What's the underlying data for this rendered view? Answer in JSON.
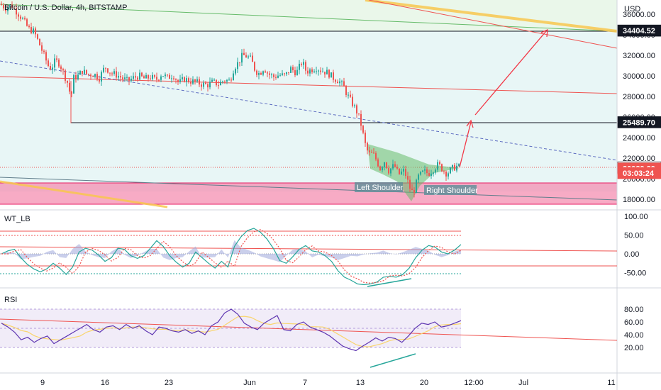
{
  "header": {
    "symbol": "Bitcoin / U.S. Dollar, 4h, BITSTAMP",
    "currency": "USD"
  },
  "price_axis": {
    "ticks": [
      "36000.00",
      "34000.00",
      "32000.00",
      "30000.00",
      "28000.00",
      "26000.00",
      "24000.00",
      "22000.00",
      "20000.00",
      "18000.00"
    ]
  },
  "price_tags": [
    {
      "label": "34404.52",
      "price": 34404.52,
      "style": "dark"
    },
    {
      "label": "25489.70",
      "price": 25489.7,
      "style": "dark"
    },
    {
      "label": "21093.42",
      "price": 21093.42,
      "style": "light"
    },
    {
      "label": "20989.39",
      "price": 20989.39,
      "style": "red"
    },
    {
      "label": "03:03:24",
      "price": 20550,
      "style": "red"
    }
  ],
  "annotations": {
    "left_shoulder": "Left Shoulder",
    "right_shoulder": "Right Shoulder"
  },
  "wt_pane": {
    "title": "WT_LB",
    "ticks": [
      "100.00",
      "50.00",
      "0.00",
      "-50.00"
    ]
  },
  "rsi_pane": {
    "title": "RSI",
    "ticks": [
      "80.00",
      "60.00",
      "40.00",
      "20.00"
    ]
  },
  "time_axis": {
    "labels": [
      "9",
      "16",
      "23",
      "Jun",
      "7",
      "13",
      "20",
      "12:00",
      "Jul",
      "11"
    ]
  },
  "colors": {
    "up": "#26a69a",
    "down": "#ef5350",
    "pink_zone": "#e91e63",
    "head_shoulders": "#4caf50",
    "projection": "#f23645",
    "yellow_line": "#f9c74f"
  },
  "chart_data": [
    {
      "type": "candlestick",
      "title": "Bitcoin / U.S. Dollar, 4h, BITSTAMP",
      "ylabel": "USD",
      "ylim": [
        17000,
        37500
      ],
      "x": [
        "9",
        "16",
        "23",
        "Jun",
        "7",
        "13",
        "20",
        "12:00",
        "Jul",
        "11"
      ],
      "approx_close_path": [
        [
          0,
          37000
        ],
        [
          8,
          36600
        ],
        [
          16,
          36900
        ],
        [
          24,
          36200
        ],
        [
          32,
          35500
        ],
        [
          40,
          34600
        ],
        [
          48,
          34300
        ],
        [
          56,
          33000
        ],
        [
          62,
          32000
        ],
        [
          68,
          31000
        ],
        [
          72,
          30700
        ],
        [
          78,
          31500
        ],
        [
          84,
          31200
        ],
        [
          90,
          30200
        ],
        [
          96,
          29200
        ],
        [
          100,
          27800
        ],
        [
          104,
          29800
        ],
        [
          110,
          30000
        ],
        [
          116,
          30500
        ],
        [
          124,
          30100
        ],
        [
          132,
          30200
        ],
        [
          140,
          29800
        ],
        [
          148,
          30900
        ],
        [
          156,
          30300
        ],
        [
          164,
          30100
        ],
        [
          172,
          29800
        ],
        [
          180,
          29500
        ],
        [
          188,
          29800
        ],
        [
          196,
          30000
        ],
        [
          204,
          29700
        ],
        [
          212,
          29900
        ],
        [
          220,
          29600
        ],
        [
          228,
          30200
        ],
        [
          236,
          29800
        ],
        [
          244,
          30100
        ],
        [
          252,
          29300
        ],
        [
          260,
          29700
        ],
        [
          268,
          29500
        ],
        [
          276,
          29400
        ],
        [
          284,
          29200
        ],
        [
          292,
          29100
        ],
        [
          300,
          29400
        ],
        [
          308,
          29200
        ],
        [
          316,
          29600
        ],
        [
          324,
          29500
        ],
        [
          330,
          30800
        ],
        [
          336,
          31300
        ],
        [
          342,
          32000
        ],
        [
          348,
          31900
        ],
        [
          354,
          31600
        ],
        [
          360,
          30500
        ],
        [
          366,
          30200
        ],
        [
          372,
          30800
        ],
        [
          378,
          30200
        ],
        [
          386,
          29900
        ],
        [
          394,
          30100
        ],
        [
          402,
          30000
        ],
        [
          410,
          30700
        ],
        [
          418,
          30300
        ],
        [
          426,
          31400
        ],
        [
          432,
          30400
        ],
        [
          438,
          30600
        ],
        [
          446,
          30800
        ],
        [
          454,
          30500
        ],
        [
          462,
          30300
        ],
        [
          470,
          29800
        ],
        [
          478,
          29500
        ],
        [
          484,
          29000
        ],
        [
          490,
          28100
        ],
        [
          496,
          27400
        ],
        [
          502,
          26700
        ],
        [
          508,
          25600
        ],
        [
          512,
          24300
        ],
        [
          516,
          23000
        ],
        [
          520,
          22400
        ],
        [
          526,
          22400
        ],
        [
          530,
          21900
        ],
        [
          536,
          21000
        ],
        [
          542,
          21700
        ],
        [
          548,
          20800
        ],
        [
          556,
          21300
        ],
        [
          562,
          20400
        ],
        [
          570,
          20800
        ],
        [
          576,
          19500
        ],
        [
          580,
          18700
        ],
        [
          584,
          18900
        ],
        [
          590,
          20200
        ],
        [
          598,
          20700
        ],
        [
          604,
          20500
        ],
        [
          612,
          21000
        ],
        [
          618,
          21400
        ],
        [
          624,
          20900
        ],
        [
          630,
          20500
        ],
        [
          638,
          21000
        ],
        [
          644,
          21200
        ],
        [
          648,
          21100
        ]
      ]
    },
    {
      "type": "line",
      "title": "WT_LB",
      "ylim": [
        -100,
        110
      ],
      "series": [
        {
          "values": [
            0,
            8,
            12,
            -10,
            -28,
            -40,
            -48,
            -40,
            -25,
            -38,
            -55,
            -35,
            5,
            15,
            10,
            -3,
            -20,
            -10,
            15,
            12,
            -5,
            -12,
            -5,
            15,
            35,
            20,
            -5,
            -22,
            -35,
            -25,
            5,
            -10,
            -25,
            -38,
            -20,
            -35,
            20,
            45,
            62,
            68,
            58,
            40,
            15,
            -18,
            -25,
            -8,
            12,
            22,
            8,
            5,
            -5,
            -20,
            -45,
            -62,
            -70,
            -80,
            -82,
            -80,
            -75,
            -62,
            -60,
            -62,
            -55,
            -38,
            -10,
            10,
            22,
            18,
            5,
            0,
            10,
            25
          ]
        }
      ]
    },
    {
      "type": "line",
      "title": "RSI",
      "ylim": [
        10,
        85
      ],
      "series": [
        {
          "values": [
            58,
            52,
            44,
            32,
            36,
            28,
            34,
            38,
            26,
            32,
            38,
            44,
            50,
            56,
            48,
            44,
            52,
            54,
            48,
            56,
            50,
            54,
            46,
            40,
            52,
            50,
            46,
            44,
            48,
            42,
            46,
            40,
            54,
            60,
            74,
            80,
            72,
            58,
            52,
            48,
            58,
            64,
            70,
            48,
            46,
            56,
            60,
            52,
            48,
            44,
            38,
            30,
            22,
            18,
            15,
            22,
            28,
            35,
            30,
            36,
            34,
            28,
            38,
            50,
            58,
            56,
            60,
            52,
            54,
            58,
            62
          ]
        }
      ]
    }
  ]
}
